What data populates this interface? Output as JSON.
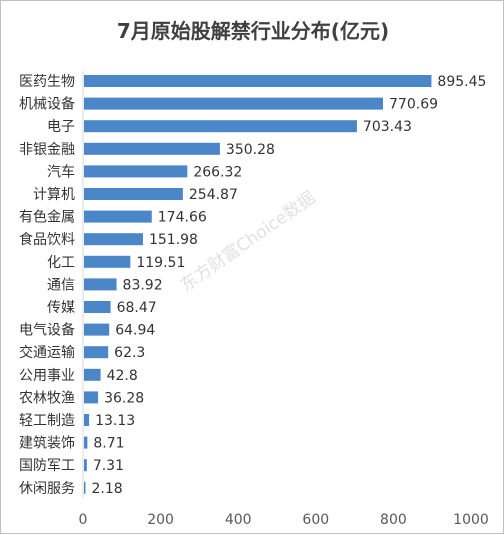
{
  "chart_data": {
    "type": "bar",
    "orientation": "horizontal",
    "title": "7月原始股解禁行业分布(亿元)",
    "categories": [
      "医药生物",
      "机械设备",
      "电子",
      "非银金融",
      "汽车",
      "计算机",
      "有色金属",
      "食品饮料",
      "化工",
      "通信",
      "传媒",
      "电气设备",
      "交通运输",
      "公用事业",
      "农林牧渔",
      "轻工制造",
      "建筑装饰",
      "国防军工",
      "休闲服务"
    ],
    "values": [
      895.45,
      770.69,
      703.43,
      350.28,
      266.32,
      254.87,
      174.66,
      151.98,
      119.51,
      83.92,
      68.47,
      64.94,
      62.3,
      42.8,
      36.28,
      13.13,
      8.71,
      7.31,
      2.18
    ],
    "value_labels": [
      "895.45",
      "770.69",
      "703.43",
      "350.28",
      "266.32",
      "254.87",
      "174.66",
      "151.98",
      "119.51",
      "83.92",
      "68.47",
      "64.94",
      "62.3",
      "42.8",
      "36.28",
      "13.13",
      "8.71",
      "7.31",
      "2.18"
    ],
    "xlim": [
      0,
      1000
    ],
    "xticks": [
      "0",
      "200",
      "400",
      "600",
      "800",
      "1000"
    ],
    "grid": false,
    "bar_color": "#4a86c8",
    "watermark": "东方财富Choice数据"
  }
}
